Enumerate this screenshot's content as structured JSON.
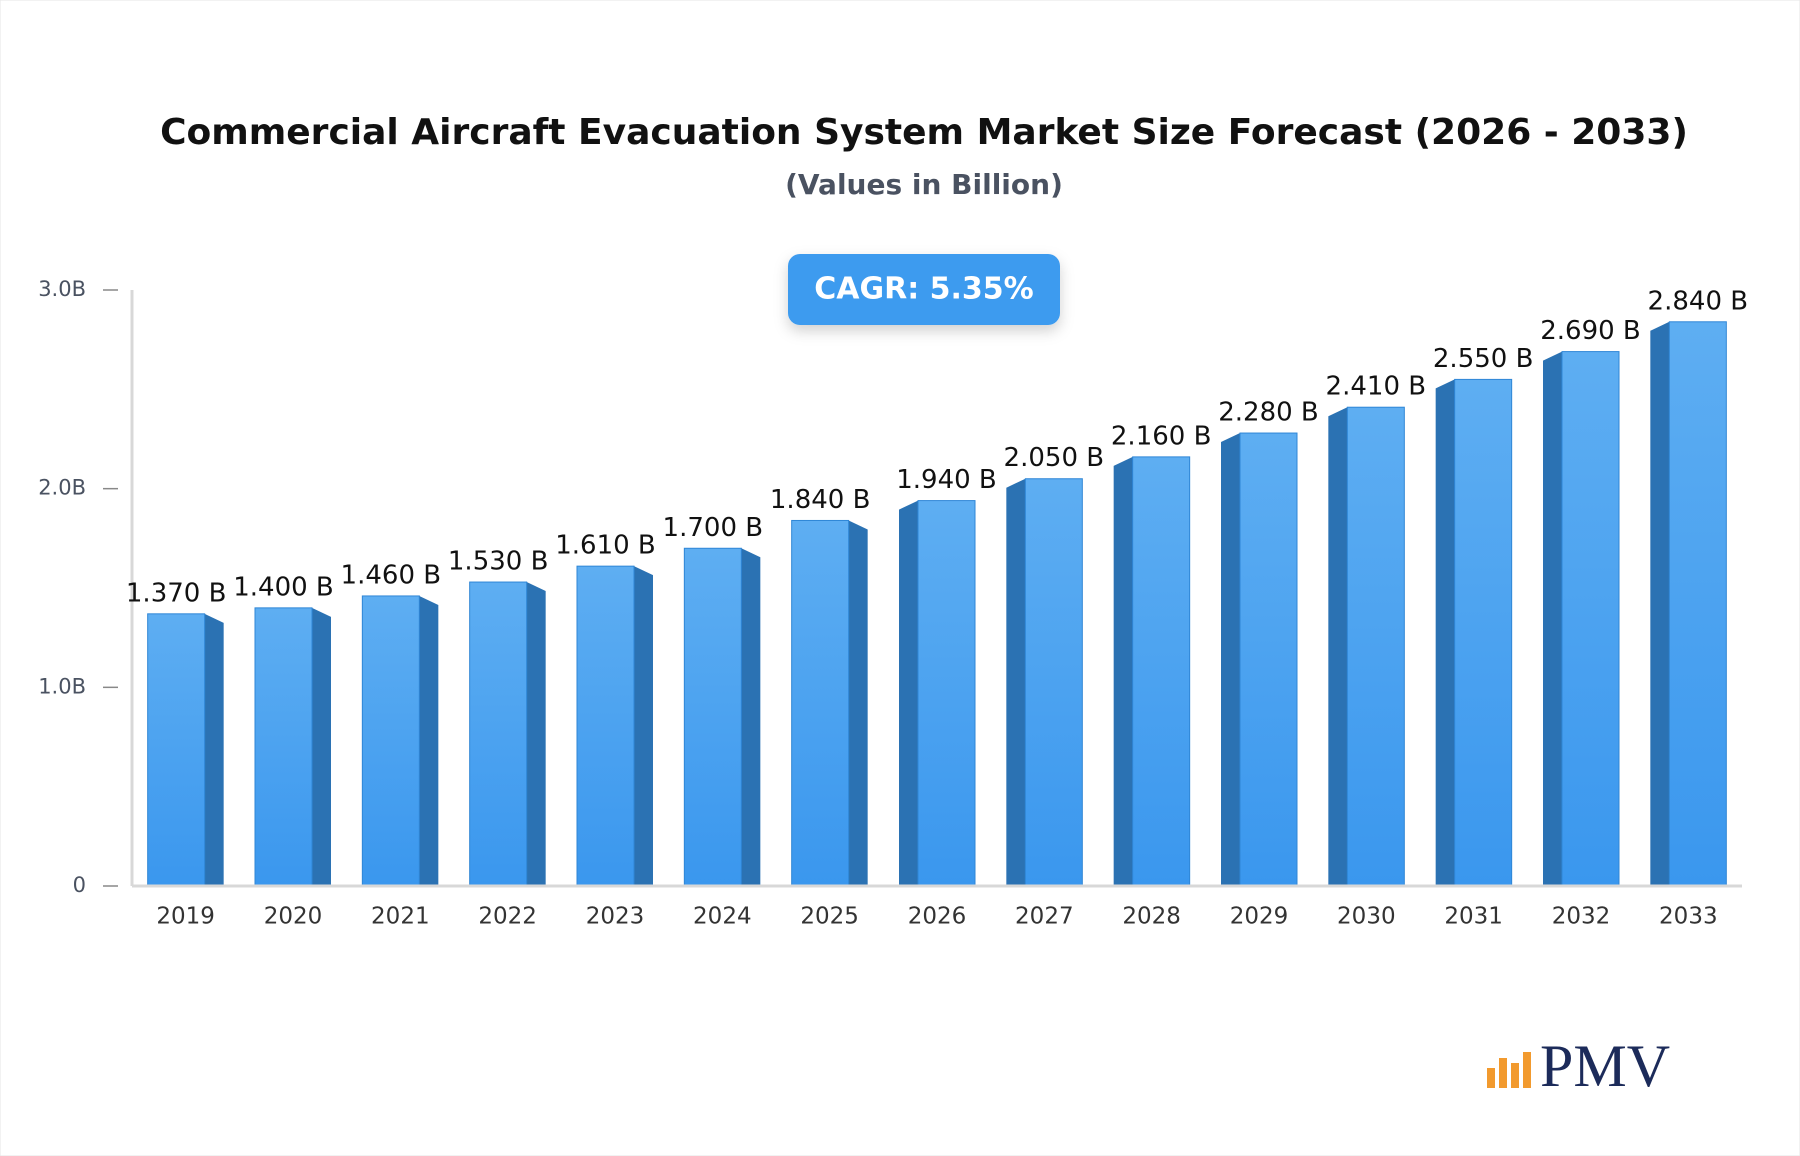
{
  "chart_data": {
    "type": "bar",
    "title": "Commercial Aircraft Evacuation System Market Size Forecast (2026 - 2033)",
    "subtitle": "(Values in Billion)",
    "annotation": "CAGR: 5.35%",
    "logo": "PMV",
    "categories": [
      "2019",
      "2020",
      "2021",
      "2022",
      "2023",
      "2024",
      "2025",
      "2026",
      "2027",
      "2028",
      "2029",
      "2030",
      "2031",
      "2032",
      "2033"
    ],
    "values": [
      1.37,
      1.4,
      1.46,
      1.53,
      1.61,
      1.7,
      1.84,
      1.94,
      2.05,
      2.16,
      2.28,
      2.41,
      2.55,
      2.69,
      2.84
    ],
    "value_labels": [
      "1.370 B",
      "1.400 B",
      "1.460 B",
      "1.530 B",
      "1.610 B",
      "1.700 B",
      "1.840 B",
      "1.940 B",
      "2.050 B",
      "2.160 B",
      "2.280 B",
      "2.410 B",
      "2.550 B",
      "2.690 B",
      "2.840 B"
    ],
    "color": "#3d9bef",
    "ylim": [
      0,
      3
    ],
    "yticks": [
      0,
      {
        "value": 1,
        "label": "1.0B"
      },
      {
        "value": 2,
        "label": "2.0B"
      },
      {
        "value": 3,
        "label": "3.0B"
      }
    ],
    "grid": false
  }
}
